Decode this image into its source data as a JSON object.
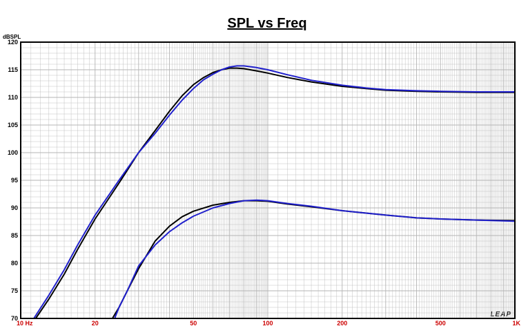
{
  "chart_data": {
    "type": "line",
    "title": "SPL vs Freq",
    "xlabel": "",
    "ylabel": "dBSPL",
    "x_scale": "log",
    "xlim": [
      10,
      1000
    ],
    "ylim": [
      70,
      120
    ],
    "grid": true,
    "x_tick_labels": [
      {
        "value": 10,
        "label": "10  Hz"
      },
      {
        "value": 20,
        "label": "20"
      },
      {
        "value": 50,
        "label": "50"
      },
      {
        "value": 100,
        "label": "100"
      },
      {
        "value": 200,
        "label": "200"
      },
      {
        "value": 500,
        "label": "500"
      },
      {
        "value": 1000,
        "label": "1K"
      }
    ],
    "y_ticks": [
      70,
      75,
      80,
      85,
      90,
      95,
      100,
      105,
      110,
      115,
      120
    ],
    "brand_text": "LEAP",
    "colors": {
      "frame": "#000000",
      "grid": "#b4b4b4",
      "x_tick_text": "#cc0000"
    },
    "series": [
      {
        "color": "#000000",
        "points": [
          [
            11.5,
            70
          ],
          [
            13,
            73.5
          ],
          [
            15,
            78
          ],
          [
            17,
            82.5
          ],
          [
            20,
            88
          ],
          [
            25,
            94.5
          ],
          [
            30,
            100
          ],
          [
            35,
            104
          ],
          [
            40,
            107.5
          ],
          [
            45,
            110.3
          ],
          [
            50,
            112.3
          ],
          [
            55,
            113.6
          ],
          [
            60,
            114.5
          ],
          [
            65,
            115
          ],
          [
            70,
            115.3
          ],
          [
            75,
            115.3
          ],
          [
            80,
            115.2
          ],
          [
            90,
            114.8
          ],
          [
            100,
            114.4
          ],
          [
            120,
            113.6
          ],
          [
            150,
            112.8
          ],
          [
            200,
            112
          ],
          [
            250,
            111.6
          ],
          [
            300,
            111.3
          ],
          [
            400,
            111.1
          ],
          [
            500,
            111
          ],
          [
            700,
            110.9
          ],
          [
            1000,
            110.9
          ]
        ]
      },
      {
        "color": "#2020cc",
        "points": [
          [
            11.3,
            70
          ],
          [
            13,
            74.2
          ],
          [
            15,
            78.8
          ],
          [
            17,
            83.3
          ],
          [
            20,
            88.7
          ],
          [
            25,
            95
          ],
          [
            30,
            100
          ],
          [
            35,
            103.5
          ],
          [
            40,
            106.8
          ],
          [
            45,
            109.5
          ],
          [
            50,
            111.6
          ],
          [
            55,
            113.2
          ],
          [
            60,
            114.2
          ],
          [
            65,
            115
          ],
          [
            70,
            115.5
          ],
          [
            75,
            115.7
          ],
          [
            80,
            115.7
          ],
          [
            90,
            115.4
          ],
          [
            100,
            115
          ],
          [
            120,
            114.1
          ],
          [
            150,
            113.1
          ],
          [
            200,
            112.2
          ],
          [
            250,
            111.7
          ],
          [
            300,
            111.4
          ],
          [
            400,
            111.2
          ],
          [
            500,
            111.1
          ],
          [
            700,
            111
          ],
          [
            1000,
            111
          ]
        ]
      },
      {
        "color": "#000000",
        "points": [
          [
            23.5,
            70
          ],
          [
            25,
            72
          ],
          [
            27,
            75
          ],
          [
            30,
            79
          ],
          [
            35,
            84
          ],
          [
            40,
            86.7
          ],
          [
            45,
            88.4
          ],
          [
            50,
            89.4
          ],
          [
            60,
            90.5
          ],
          [
            70,
            91
          ],
          [
            80,
            91.3
          ],
          [
            90,
            91.3
          ],
          [
            100,
            91.2
          ],
          [
            120,
            90.7
          ],
          [
            150,
            90.2
          ],
          [
            200,
            89.5
          ],
          [
            300,
            88.7
          ],
          [
            400,
            88.2
          ],
          [
            500,
            88
          ],
          [
            700,
            87.8
          ],
          [
            1000,
            87.7
          ]
        ]
      },
      {
        "color": "#2020cc",
        "points": [
          [
            10,
            70
          ],
          [
            24,
            70
          ],
          [
            25,
            72
          ],
          [
            27,
            75
          ],
          [
            30,
            79.5
          ],
          [
            35,
            83.3
          ],
          [
            40,
            85.7
          ],
          [
            45,
            87.3
          ],
          [
            50,
            88.5
          ],
          [
            60,
            90
          ],
          [
            70,
            90.8
          ],
          [
            80,
            91.3
          ],
          [
            90,
            91.4
          ],
          [
            100,
            91.3
          ],
          [
            120,
            90.8
          ],
          [
            150,
            90.3
          ],
          [
            200,
            89.5
          ],
          [
            300,
            88.7
          ],
          [
            400,
            88.2
          ],
          [
            500,
            88
          ],
          [
            700,
            87.8
          ],
          [
            1000,
            87.6
          ]
        ]
      }
    ]
  }
}
